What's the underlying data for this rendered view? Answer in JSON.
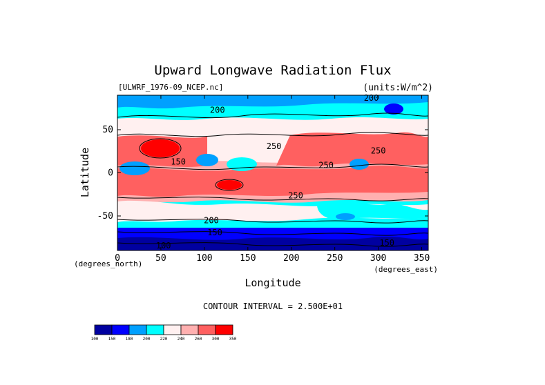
{
  "chart_data": {
    "type": "heatmap",
    "title": "Upward Longwave Radiation Flux",
    "source_label": "[ULWRF_1976-09_NCEP.nc]",
    "units_label": "(units:W/m^2)",
    "xlabel": "Longitude",
    "ylabel": "Latitude",
    "x_unit_label": "(degrees_east)",
    "y_unit_label": "(degrees_north)",
    "xlim": [
      0,
      357.5
    ],
    "ylim": [
      -90,
      90
    ],
    "x_ticks": [
      0,
      50,
      100,
      150,
      200,
      250,
      300,
      350
    ],
    "y_ticks": [
      -50,
      0,
      50
    ],
    "contour_interval_text": "CONTOUR INTERVAL = 2.500E+01",
    "contour_labels": [
      {
        "text": "200",
        "lon": 115,
        "lat": 72
      },
      {
        "text": "200",
        "lon": 292,
        "lat": 86
      },
      {
        "text": "250",
        "lon": 180,
        "lat": 30
      },
      {
        "text": "250",
        "lon": 300,
        "lat": 25
      },
      {
        "text": "250",
        "lon": 240,
        "lat": 8
      },
      {
        "text": "250",
        "lon": 205,
        "lat": -27
      },
      {
        "text": "200",
        "lon": 108,
        "lat": -56
      },
      {
        "text": "150",
        "lon": 112,
        "lat": -70
      },
      {
        "text": "100",
        "lon": 53,
        "lat": -85
      },
      {
        "text": "150",
        "lon": 310,
        "lat": -82
      },
      {
        "text": "150",
        "lon": 70,
        "lat": 12
      }
    ],
    "colorbar": {
      "levels": [
        100,
        150,
        180,
        200,
        220,
        240,
        260,
        300,
        350
      ],
      "colors": [
        "#0000a0",
        "#0000ff",
        "#00a0ff",
        "#00ffff",
        "#fff0f0",
        "#ffb0b0",
        "#ff6060",
        "#ff0000"
      ]
    }
  }
}
